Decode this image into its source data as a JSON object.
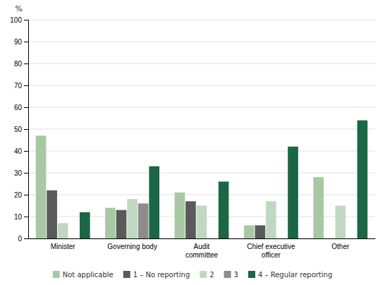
{
  "chart_data": {
    "type": "bar",
    "ylabel": "%",
    "categories": [
      "Minister",
      "Governing body",
      "Audit\ncommittee",
      "Chief executive\nofficer",
      "Other"
    ],
    "series": [
      {
        "name": "Not applicable",
        "color": "#a8c8a4",
        "values": [
          47,
          14,
          21,
          6,
          28
        ]
      },
      {
        "name": "1 – No reporting",
        "color": "#5a5a5a",
        "values": [
          22,
          13,
          17,
          6,
          0
        ]
      },
      {
        "name": "2",
        "color": "#c0d8c0",
        "values": [
          7,
          18,
          15,
          17,
          15
        ]
      },
      {
        "name": "3",
        "color": "#8c8c8c",
        "values": [
          0,
          16,
          0,
          0,
          0
        ]
      },
      {
        "name": "4 – Regular reporting",
        "color": "#1a6645",
        "values": [
          12,
          33,
          26,
          42,
          54
        ]
      }
    ],
    "ylim": [
      0,
      100
    ],
    "yticks": [
      0,
      10,
      20,
      30,
      40,
      50,
      60,
      70,
      80,
      90,
      100
    ],
    "grid": true,
    "legend": "bottom"
  }
}
